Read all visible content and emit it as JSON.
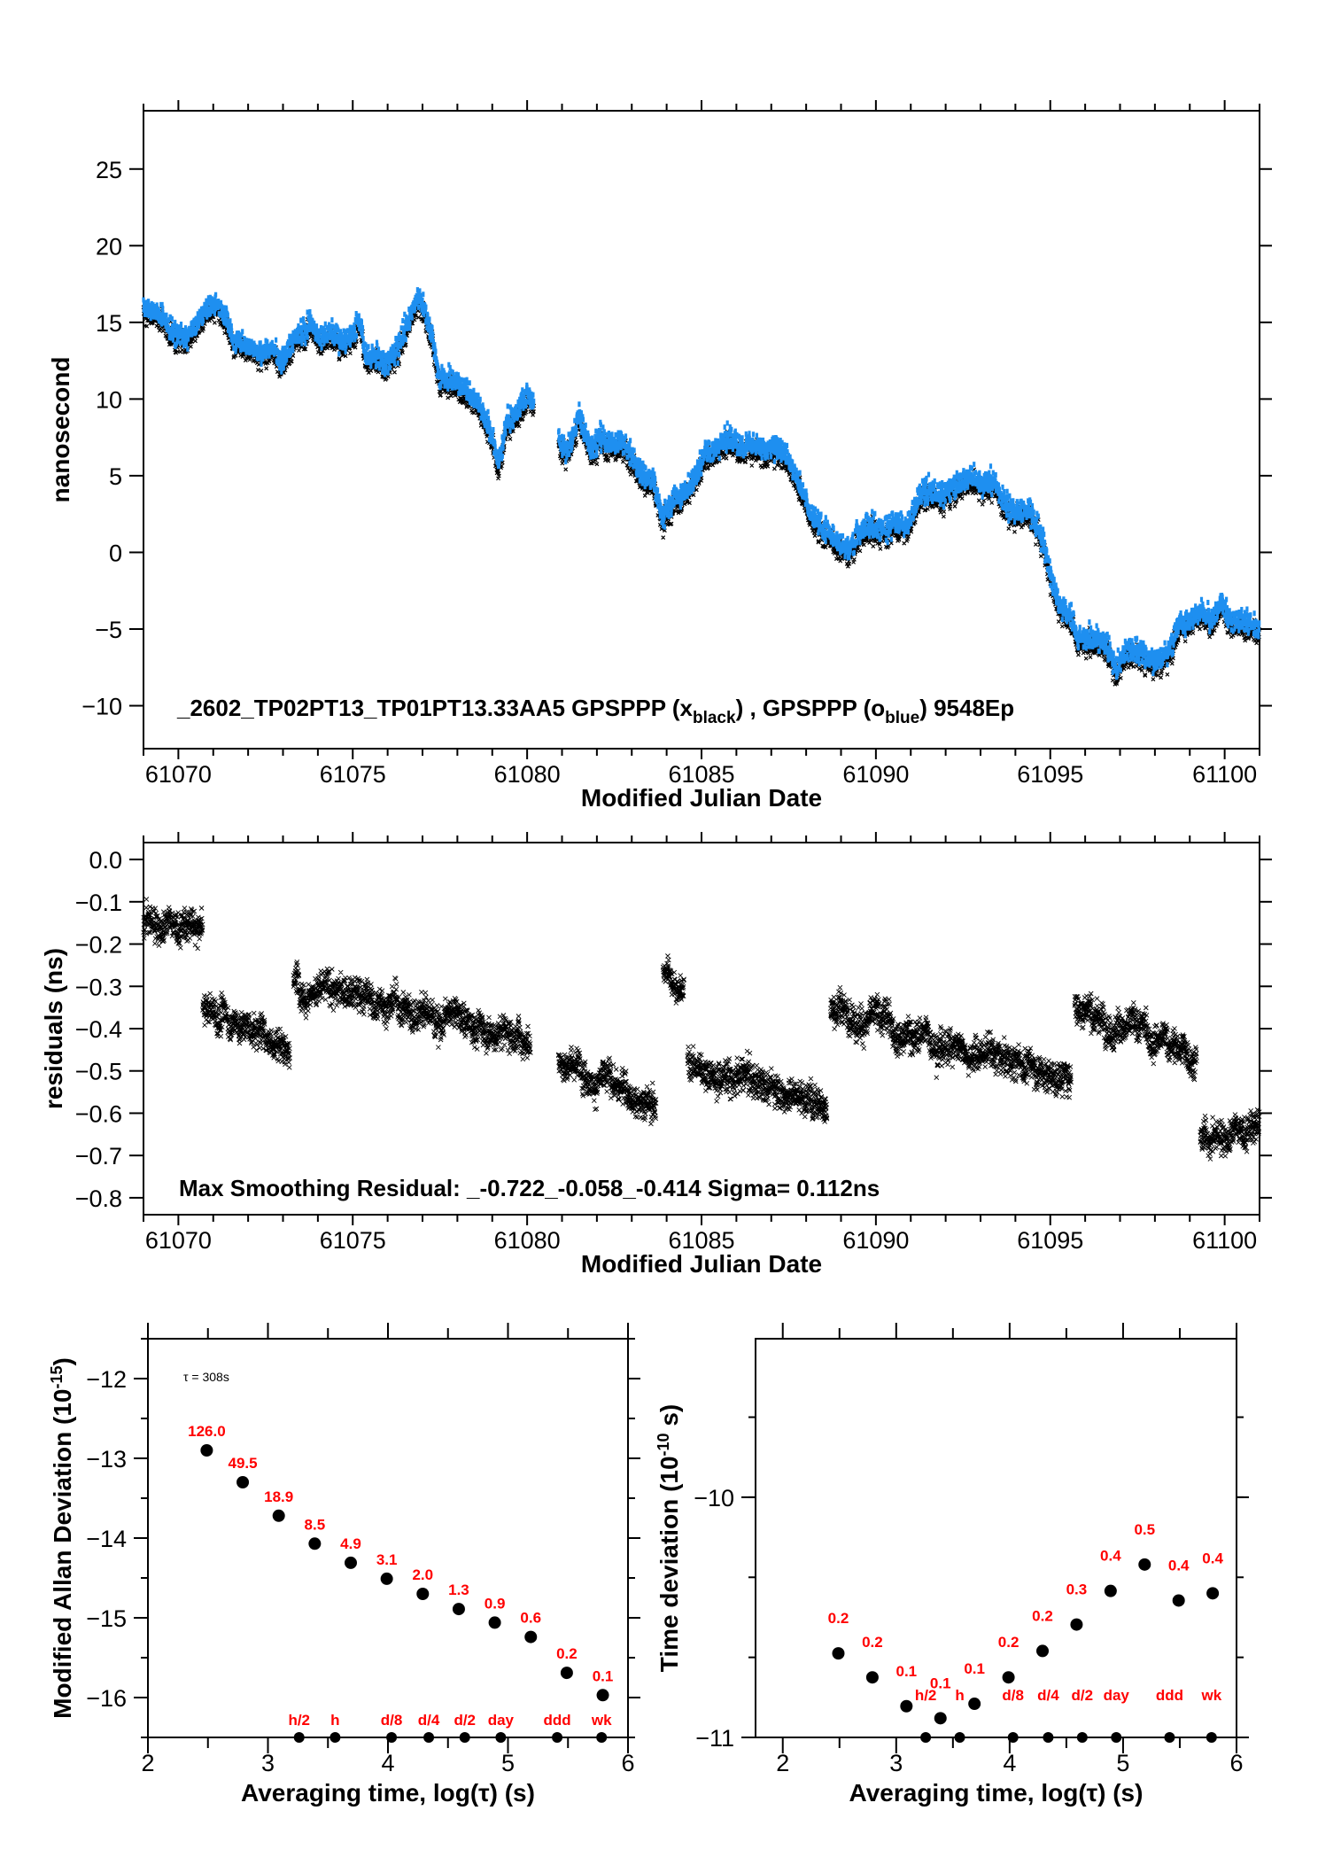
{
  "chart_data": [
    {
      "id": "phase",
      "type": "scatter",
      "title": "",
      "xlabel": "Modified Julian Date",
      "ylabel": "nanosecond",
      "xlim": [
        61069.0,
        61101.0
      ],
      "ylim": [
        -12.8,
        28.8
      ],
      "xticks": [
        61070,
        61075,
        61080,
        61085,
        61090,
        61095,
        61100
      ],
      "yticks": [
        -10,
        -5,
        0,
        5,
        10,
        15,
        20,
        25
      ],
      "grid": false,
      "annotation": {
        "prefix": "_2602_TP02PT13_TP01PT13.33AA5    GPSPPP (x",
        "sub1": "black",
        "mid": ") ,  GPSPPP (o",
        "sub2": "blue",
        "suffix": ")  9548Ep"
      },
      "series": [
        {
          "name": "GPSPPP (x black)",
          "color": "#000000",
          "marker": "x",
          "offset": -0.5
        },
        {
          "name": "GPSPPP (o blue)",
          "color": "#1e8ff0",
          "marker": "o",
          "offset": 0.0
        }
      ],
      "anchors": [
        [
          61069.0,
          16.0
        ],
        [
          61069.5,
          15.5
        ],
        [
          61069.8,
          14.5
        ],
        [
          61070.2,
          14.0
        ],
        [
          61070.5,
          14.8
        ],
        [
          61070.9,
          16.2
        ],
        [
          61071.3,
          15.8
        ],
        [
          61071.6,
          13.8
        ],
        [
          61072.0,
          13.6
        ],
        [
          61072.4,
          13.0
        ],
        [
          61072.7,
          13.4
        ],
        [
          61073.0,
          12.6
        ],
        [
          61073.3,
          14.0
        ],
        [
          61073.6,
          14.4
        ],
        [
          61073.8,
          15.0
        ],
        [
          61074.1,
          14.0
        ],
        [
          61074.4,
          14.5
        ],
        [
          61074.7,
          13.7
        ],
        [
          61075.0,
          14.3
        ],
        [
          61075.2,
          15.2
        ],
        [
          61075.4,
          12.7
        ],
        [
          61075.7,
          13.0
        ],
        [
          61075.9,
          12.2
        ],
        [
          61076.2,
          13.0
        ],
        [
          61076.5,
          14.6
        ],
        [
          61076.9,
          16.8
        ],
        [
          61077.2,
          14.8
        ],
        [
          61077.5,
          11.5
        ],
        [
          61077.9,
          11.2
        ],
        [
          61078.3,
          10.5
        ],
        [
          61078.6,
          9.8
        ],
        [
          61078.9,
          8.2
        ],
        [
          61079.2,
          6.0
        ],
        [
          61079.4,
          8.5
        ],
        [
          61079.7,
          9.0
        ],
        [
          61080.0,
          10.5
        ],
        [
          61080.2,
          9.8
        ],
        null,
        [
          61080.9,
          7.5
        ],
        [
          61081.1,
          6.5
        ],
        [
          61081.3,
          7.5
        ],
        [
          61081.5,
          9.0
        ],
        [
          61081.8,
          6.8
        ],
        [
          61082.1,
          7.5
        ],
        [
          61082.4,
          7.0
        ],
        [
          61082.7,
          7.4
        ],
        [
          61083.0,
          6.3
        ],
        [
          61083.3,
          5.0
        ],
        [
          61083.6,
          4.8
        ],
        [
          61083.9,
          2.4
        ],
        [
          61084.2,
          3.5
        ],
        [
          61084.5,
          4.0
        ],
        [
          61084.8,
          4.8
        ],
        [
          61085.1,
          6.5
        ],
        [
          61085.4,
          6.8
        ],
        [
          61085.7,
          7.5
        ],
        [
          61086.0,
          7.2
        ],
        [
          61086.4,
          7.0
        ],
        [
          61086.8,
          6.6
        ],
        [
          61087.2,
          7.0
        ],
        [
          61087.5,
          6.0
        ],
        [
          61087.8,
          4.5
        ],
        [
          61088.1,
          2.8
        ],
        [
          61088.4,
          1.7
        ],
        [
          61088.8,
          1.0
        ],
        [
          61089.2,
          0.2
        ],
        [
          61089.5,
          1.2
        ],
        [
          61089.8,
          1.8
        ],
        [
          61090.2,
          1.5
        ],
        [
          61090.6,
          2.0
        ],
        [
          61090.9,
          1.7
        ],
        [
          61091.2,
          3.5
        ],
        [
          61091.5,
          4.2
        ],
        [
          61091.9,
          3.8
        ],
        [
          61092.3,
          4.4
        ],
        [
          61092.7,
          5.0
        ],
        [
          61093.0,
          4.3
        ],
        [
          61093.4,
          4.8
        ],
        [
          61093.7,
          3.2
        ],
        [
          61094.0,
          2.6
        ],
        [
          61094.4,
          2.9
        ],
        [
          61094.8,
          0.8
        ],
        [
          61095.0,
          -1.5
        ],
        [
          61095.3,
          -3.6
        ],
        [
          61095.6,
          -4.2
        ],
        [
          61095.8,
          -5.8
        ],
        [
          61096.2,
          -5.5
        ],
        [
          61096.6,
          -6.0
        ],
        [
          61096.9,
          -7.5
        ],
        [
          61097.2,
          -6.2
        ],
        [
          61097.6,
          -6.5
        ],
        [
          61098.0,
          -7.0
        ],
        [
          61098.4,
          -6.5
        ],
        [
          61098.7,
          -4.5
        ],
        [
          61099.0,
          -4.6
        ],
        [
          61099.3,
          -3.8
        ],
        [
          61099.6,
          -4.5
        ],
        [
          61099.9,
          -3.2
        ],
        [
          61100.2,
          -4.5
        ],
        [
          61100.5,
          -4.3
        ],
        [
          61101.0,
          -5.0
        ]
      ]
    },
    {
      "id": "residuals",
      "type": "scatter",
      "title": "",
      "xlabel": "Modified Julian Date",
      "ylabel": "residuals (ns)",
      "xlim": [
        61069.0,
        61101.0
      ],
      "ylim": [
        -0.84,
        0.04
      ],
      "xticks": [
        61070,
        61075,
        61080,
        61085,
        61090,
        61095,
        61100
      ],
      "yticks": [
        0.0,
        -0.1,
        -0.2,
        -0.3,
        -0.4,
        -0.5,
        -0.6,
        -0.7,
        -0.8
      ],
      "ytick_labels": [
        "0.0",
        "−0.1",
        "−0.2",
        "−0.3",
        "−0.4",
        "−0.5",
        "−0.6",
        "−0.7",
        "−0.8"
      ],
      "grid": false,
      "annotation": "Max Smoothing Residual: _-0.722_-0.058_-0.414  Sigma= 0.112ns",
      "marker": "x",
      "color": "#000000",
      "segments": [
        {
          "x0": 61069.0,
          "x1": 61070.7,
          "y0": -0.15,
          "y1": -0.17,
          "spread": 0.03
        },
        {
          "x0": 61070.7,
          "x1": 61073.2,
          "y0": -0.35,
          "y1": -0.44,
          "spread": 0.03
        },
        {
          "x0": 61073.3,
          "x1": 61080.1,
          "y0": -0.29,
          "y1": -0.42,
          "spread": 0.03
        },
        {
          "x0": 61080.9,
          "x1": 61083.7,
          "y0": -0.47,
          "y1": -0.58,
          "spread": 0.03
        },
        {
          "x0": 61083.9,
          "x1": 61084.5,
          "y0": -0.27,
          "y1": -0.3,
          "spread": 0.025
        },
        {
          "x0": 61084.6,
          "x1": 61088.6,
          "y0": -0.48,
          "y1": -0.57,
          "spread": 0.03
        },
        {
          "x0": 61088.7,
          "x1": 61095.6,
          "y0": -0.35,
          "y1": -0.52,
          "spread": 0.03
        },
        {
          "x0": 61095.7,
          "x1": 61099.2,
          "y0": -0.34,
          "y1": -0.47,
          "spread": 0.03
        },
        {
          "x0": 61099.3,
          "x1": 61101.0,
          "y0": -0.66,
          "y1": -0.64,
          "spread": 0.03
        }
      ]
    },
    {
      "id": "mdev",
      "type": "scatter",
      "title": "",
      "xlabel": "Averaging time, log(τ) (s)",
      "ylabel": "Modified Allan Deviation (10",
      "ylabel_exp": "-15",
      "ylabel_tail": ")",
      "xlim": [
        2.0,
        6.0
      ],
      "ylim": [
        -16.5,
        -11.5
      ],
      "xticks": [
        2,
        3,
        4,
        5,
        6
      ],
      "yticks": [
        -12,
        -13,
        -14,
        -15,
        -16
      ],
      "grid": false,
      "tau_note": "τ = 308s",
      "x": [
        2.49,
        2.79,
        3.09,
        3.39,
        3.69,
        3.99,
        4.29,
        4.59,
        4.89,
        5.19,
        5.49,
        5.79
      ],
      "y": [
        -12.9,
        -13.3,
        -13.72,
        -14.07,
        -14.31,
        -14.51,
        -14.7,
        -14.89,
        -15.06,
        -15.24,
        -15.69,
        -15.97
      ],
      "labels": [
        "126.0",
        "49.5",
        "18.9",
        "8.5",
        "4.9",
        "3.1",
        "2.0",
        "1.3",
        "0.9",
        "0.6",
        "0.2",
        "0.1"
      ],
      "period_markers": [
        {
          "label": "h/2",
          "x": 3.26
        },
        {
          "label": "h",
          "x": 3.56
        },
        {
          "label": "d/8",
          "x": 4.03
        },
        {
          "label": "d/4",
          "x": 4.34
        },
        {
          "label": "d/2",
          "x": 4.64
        },
        {
          "label": "day",
          "x": 4.94
        },
        {
          "label": "ddd",
          "x": 5.41
        },
        {
          "label": "wk",
          "x": 5.78
        }
      ]
    },
    {
      "id": "tdev",
      "type": "scatter",
      "title": "",
      "xlabel": "Averaging time, log(τ) (s)",
      "ylabel": "Time deviation (10",
      "ylabel_exp": "-10",
      "ylabel_tail": " s)",
      "xlim": [
        1.76,
        6.0
      ],
      "ylim": [
        -11.0,
        -9.34
      ],
      "xticks": [
        2,
        3,
        4,
        5,
        6
      ],
      "yticks": [
        -10,
        -11
      ],
      "grid": false,
      "x": [
        2.49,
        2.79,
        3.09,
        3.39,
        3.69,
        3.99,
        4.29,
        4.59,
        4.89,
        5.19,
        5.49,
        5.79
      ],
      "y": [
        -10.65,
        -10.75,
        -10.87,
        -10.92,
        -10.86,
        -10.75,
        -10.64,
        -10.53,
        -10.39,
        -10.28,
        -10.43,
        -10.4
      ],
      "labels": [
        "0.2",
        "0.2",
        "0.1",
        "0.1",
        "0.1",
        "0.2",
        "0.2",
        "0.3",
        "0.4",
        "0.5",
        "0.4",
        "0.4"
      ],
      "period_markers": [
        {
          "label": "h/2",
          "x": 3.26
        },
        {
          "label": "h",
          "x": 3.56
        },
        {
          "label": "d/8",
          "x": 4.03
        },
        {
          "label": "d/4",
          "x": 4.34
        },
        {
          "label": "d/2",
          "x": 4.64
        },
        {
          "label": "day",
          "x": 4.94
        },
        {
          "label": "ddd",
          "x": 5.41
        },
        {
          "label": "wk",
          "x": 5.78
        }
      ]
    }
  ]
}
